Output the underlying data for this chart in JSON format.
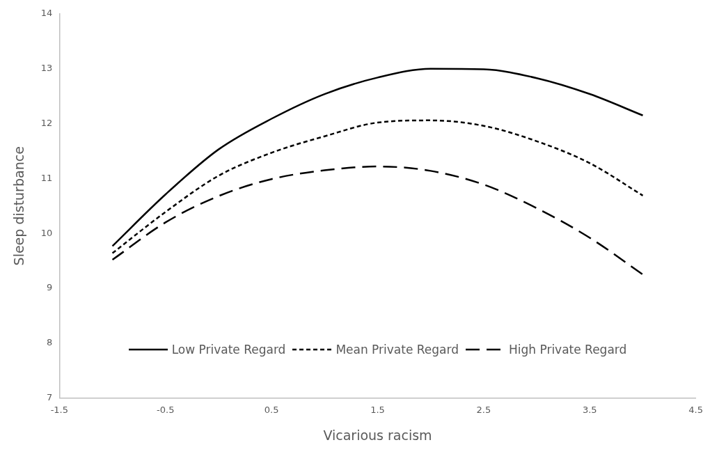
{
  "chart_data": {
    "type": "line",
    "xlabel": "Vicarious racism",
    "ylabel": "Sleep disturbance",
    "x": [
      -1,
      -0.5,
      0,
      0.5,
      1,
      1.5,
      2,
      2.5,
      3,
      3.5,
      4
    ],
    "series": [
      {
        "name": "Low Private Regard",
        "color": "#000000",
        "line_style": "solid",
        "values": [
          9.77,
          10.71,
          11.53,
          12.09,
          12.54,
          12.84,
          13.0,
          12.99,
          12.83,
          12.54,
          12.15
        ]
      },
      {
        "name": "Mean Private Regard",
        "color": "#000000",
        "line_style": "dotted",
        "values": [
          9.64,
          10.39,
          11.05,
          11.47,
          11.77,
          12.02,
          12.06,
          11.96,
          11.68,
          11.28,
          10.69
        ]
      },
      {
        "name": "High Private Regard",
        "color": "#000000",
        "line_style": "dashed",
        "values": [
          9.52,
          10.2,
          10.68,
          10.99,
          11.15,
          11.22,
          11.14,
          10.89,
          10.46,
          9.92,
          9.25
        ]
      }
    ],
    "xlim": [
      -1.5,
      4.5
    ],
    "xticks": [
      -1.5,
      -0.5,
      0.5,
      1.5,
      2.5,
      3.5,
      4.5
    ],
    "ylim": [
      7,
      14
    ],
    "yticks": [
      7,
      8,
      9,
      10,
      11,
      12,
      13,
      14
    ],
    "grid": false,
    "legend": "bottom",
    "marker": "none"
  }
}
